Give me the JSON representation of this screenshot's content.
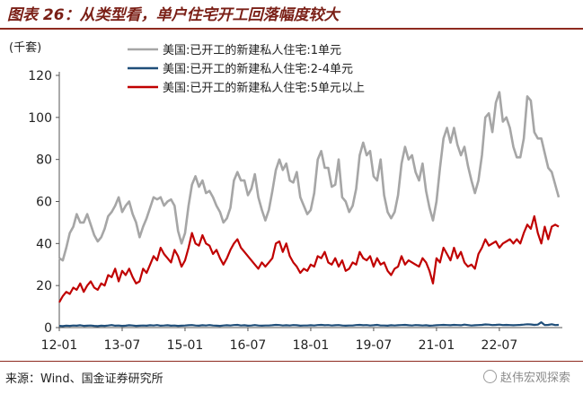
{
  "figure": {
    "title": "图表 26：从类型看，单户住宅开工回落幅度较大",
    "unit_label": "(千套)",
    "source": "来源：Wind、国金证券研究所",
    "watermark": "赵伟宏观探索"
  },
  "chart_data": {
    "type": "line",
    "title": "图表 26：从类型看，单户住宅开工回落幅度较大",
    "ylabel": "(千套)",
    "xlabel": "",
    "ylim": [
      0,
      120
    ],
    "yticks": [
      0,
      20,
      40,
      60,
      80,
      100,
      120
    ],
    "xticks": [
      "12-01",
      "13-07",
      "15-01",
      "16-07",
      "18-01",
      "19-07",
      "21-01",
      "22-07"
    ],
    "x_start": "2012-01",
    "x_end": "2022-10",
    "grid": false,
    "legend_position": "top-left",
    "series": [
      {
        "name": "美国:已开工的新建私人住宅:1单元",
        "color": "#a6a6a6",
        "values": [
          33,
          32,
          38,
          45,
          48,
          54,
          50,
          50,
          54,
          49,
          44,
          41,
          43,
          47,
          53,
          55,
          58,
          62,
          55,
          58,
          60,
          54,
          50,
          43,
          48,
          52,
          57,
          62,
          61,
          62,
          58,
          60,
          61,
          58,
          46,
          40,
          45,
          58,
          68,
          72,
          67,
          70,
          64,
          65,
          62,
          58,
          55,
          50,
          52,
          57,
          70,
          74,
          70,
          70,
          63,
          66,
          73,
          62,
          56,
          51,
          56,
          65,
          75,
          80,
          75,
          78,
          70,
          69,
          74,
          62,
          58,
          54,
          56,
          64,
          80,
          84,
          76,
          76,
          67,
          68,
          80,
          62,
          60,
          55,
          58,
          66,
          82,
          88,
          82,
          84,
          72,
          70,
          80,
          63,
          55,
          52,
          55,
          63,
          78,
          86,
          80,
          82,
          74,
          70,
          78,
          65,
          57,
          51,
          60,
          76,
          90,
          95,
          88,
          95,
          87,
          82,
          86,
          77,
          70,
          64,
          70,
          82,
          100,
          102,
          93,
          107,
          112,
          98,
          100,
          95,
          86,
          81,
          81,
          90,
          110,
          108,
          93,
          90,
          90,
          83,
          76,
          74,
          68,
          62
        ]
      },
      {
        "name": "美国:已开工的新建私人住宅:2-4单元",
        "color": "#1f4e79",
        "values": [
          0.8,
          0.7,
          0.9,
          0.8,
          1.0,
          0.9,
          1.1,
          0.8,
          0.9,
          1.0,
          0.8,
          0.7,
          0.9,
          0.8,
          1.0,
          1.2,
          0.9,
          1.0,
          0.8,
          0.9,
          1.1,
          1.0,
          0.8,
          0.9,
          1.0,
          0.9,
          1.1,
          1.0,
          1.2,
          0.9,
          1.0,
          1.1,
          0.9,
          1.0,
          0.8,
          0.9,
          1.0,
          1.1,
          1.2,
          1.0,
          0.9,
          1.1,
          1.0,
          1.2,
          1.0,
          0.9,
          0.8,
          1.0,
          1.1,
          1.0,
          1.2,
          1.3,
          1.0,
          1.1,
          0.9,
          1.0,
          1.2,
          1.0,
          0.9,
          1.0,
          1.0,
          1.1,
          1.3,
          1.2,
          1.0,
          1.1,
          1.0,
          1.2,
          1.1,
          0.9,
          1.0,
          1.0,
          1.1,
          1.0,
          1.2,
          1.3,
          1.1,
          1.2,
          1.0,
          1.1,
          1.2,
          1.0,
          0.9,
          1.0,
          1.0,
          1.2,
          1.3,
          1.1,
          1.2,
          1.0,
          1.1,
          1.3,
          1.0,
          1.0,
          0.9,
          1.1,
          1.0,
          1.1,
          1.2,
          1.3,
          1.1,
          1.0,
          1.2,
          1.1,
          1.0,
          1.1,
          0.9,
          1.0,
          1.1,
          1.2,
          1.3,
          1.2,
          1.1,
          1.3,
          1.2,
          1.1,
          1.4,
          1.2,
          1.0,
          1.1,
          1.2,
          1.3,
          1.5,
          1.4,
          1.2,
          1.3,
          1.4,
          1.2,
          1.3,
          1.2,
          1.1,
          1.2,
          1.3,
          1.4,
          1.6,
          1.5,
          1.3,
          1.4,
          2.5,
          1.2,
          1.3,
          1.6,
          1.2,
          1.3
        ]
      },
      {
        "name": "美国:已开工的新建私人住宅:5单元以上",
        "color": "#c00000",
        "values": [
          12,
          15,
          17,
          16,
          19,
          18,
          21,
          17,
          20,
          22,
          19,
          18,
          21,
          20,
          25,
          24,
          28,
          22,
          27,
          25,
          28,
          24,
          21,
          22,
          28,
          26,
          30,
          34,
          32,
          38,
          35,
          33,
          31,
          37,
          34,
          29,
          32,
          38,
          45,
          40,
          39,
          44,
          40,
          39,
          35,
          37,
          33,
          30,
          33,
          37,
          40,
          42,
          38,
          36,
          34,
          32,
          30,
          28,
          31,
          29,
          31,
          33,
          40,
          41,
          36,
          40,
          34,
          31,
          29,
          26,
          28,
          27,
          30,
          29,
          34,
          33,
          36,
          31,
          30,
          33,
          29,
          32,
          27,
          28,
          31,
          30,
          36,
          33,
          32,
          34,
          29,
          33,
          30,
          31,
          27,
          25,
          28,
          29,
          34,
          30,
          32,
          31,
          30,
          29,
          33,
          31,
          27,
          21,
          33,
          31,
          38,
          35,
          32,
          38,
          33,
          36,
          31,
          29,
          30,
          28,
          35,
          38,
          42,
          39,
          40,
          41,
          38,
          40,
          41,
          42,
          40,
          42,
          40,
          45,
          49,
          47,
          53,
          45,
          40,
          48,
          42,
          48,
          49,
          48
        ]
      }
    ]
  }
}
